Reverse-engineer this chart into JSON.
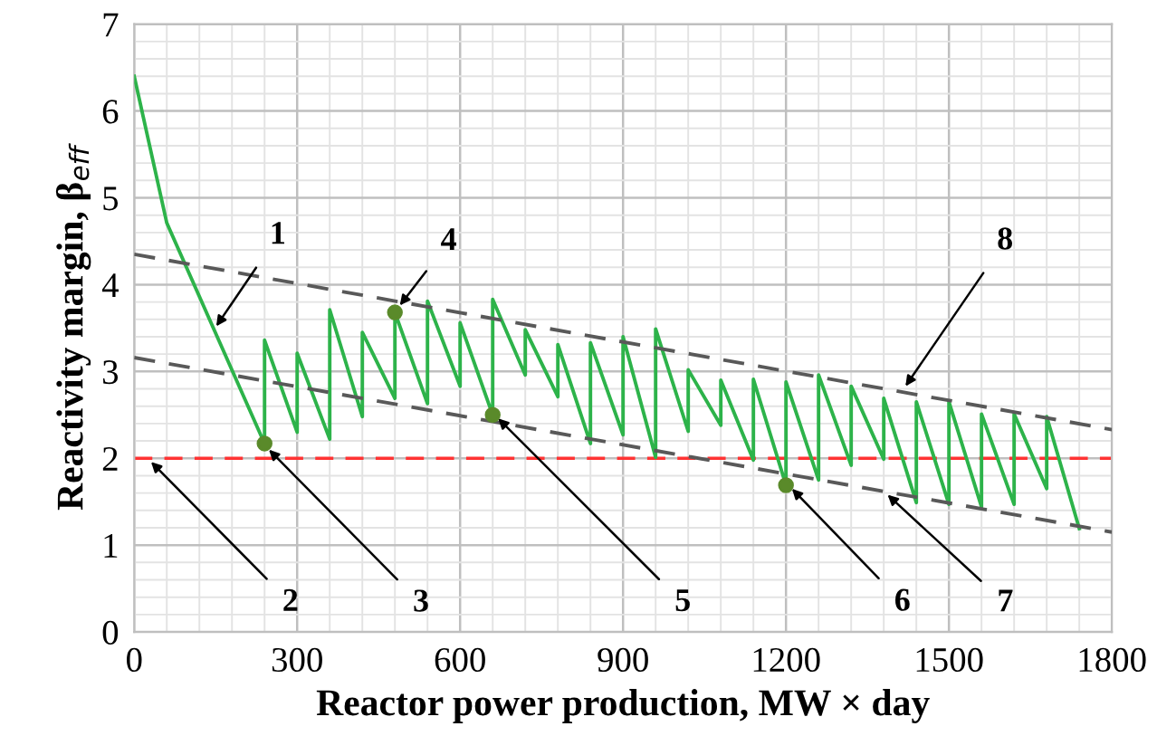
{
  "chart_data": {
    "type": "line",
    "xlabel": "Reactor power production, MW × day",
    "ylabel": "Reactivity margin, β$_{eff}$",
    "xlim": [
      0,
      1800
    ],
    "xticks": [
      0,
      300,
      600,
      900,
      1200,
      1500,
      1800
    ],
    "ylim": [
      0,
      7
    ],
    "yticks": [
      0,
      1,
      2,
      3,
      4,
      5,
      6,
      7
    ],
    "grid": true,
    "legend": false,
    "series": [
      {
        "type": "line",
        "color": "#2db34a",
        "line_style": "solid",
        "marker": "none",
        "x": [
          0,
          60,
          240,
          240,
          300,
          300,
          360,
          360,
          420,
          420,
          480,
          480,
          540,
          540,
          600,
          600,
          660,
          660,
          720,
          720,
          780,
          780,
          840,
          840,
          900,
          900,
          960,
          960,
          1020,
          1020,
          1080,
          1080,
          1140,
          1140,
          1200,
          1200,
          1260,
          1260,
          1320,
          1320,
          1380,
          1380,
          1440,
          1440,
          1500,
          1500,
          1560,
          1560,
          1620,
          1620,
          1680,
          1680,
          1740
        ],
        "values": [
          6.4,
          4.71,
          2.17,
          3.36,
          2.3,
          3.21,
          2.22,
          3.71,
          2.48,
          3.45,
          2.69,
          3.68,
          2.63,
          3.81,
          2.83,
          3.56,
          2.5,
          3.83,
          2.96,
          3.48,
          2.71,
          3.31,
          2.17,
          3.33,
          2.27,
          3.4,
          2.01,
          3.49,
          2.31,
          3.02,
          2.38,
          2.9,
          1.98,
          2.91,
          1.69,
          2.88,
          1.75,
          2.96,
          1.92,
          2.83,
          1.99,
          2.69,
          1.49,
          2.65,
          1.47,
          2.65,
          1.44,
          2.51,
          1.47,
          2.51,
          1.65,
          2.48,
          1.19
        ]
      },
      {
        "type": "line",
        "color": "#595959",
        "line_style": "dashed",
        "marker": "none",
        "x": [
          0,
          1800
        ],
        "values": [
          4.35,
          2.33
        ]
      },
      {
        "type": "line",
        "color": "#595959",
        "line_style": "dashed",
        "marker": "none",
        "x": [
          0,
          1800
        ],
        "values": [
          3.16,
          1.15
        ]
      },
      {
        "type": "scatter",
        "color": "#5a8a2a",
        "marker": "circle",
        "x": [
          240,
          480,
          660,
          1200
        ],
        "values": [
          2.17,
          3.68,
          2.5,
          1.69
        ]
      }
    ],
    "ref_lines": [
      {
        "axis": "y",
        "value": 2,
        "label": null,
        "color": "#ff3333",
        "line_style": "dashed"
      }
    ],
    "annotations": [
      {
        "text": "1",
        "x": 151,
        "y": 3.52
      },
      {
        "text": "2",
        "x": 31,
        "y": 1.96
      },
      {
        "text": "3",
        "x": 248,
        "y": 2.1
      },
      {
        "text": "4",
        "x": 489,
        "y": 3.76
      },
      {
        "text": "5",
        "x": 670,
        "y": 2.46
      },
      {
        "text": "6",
        "x": 1211,
        "y": 1.65
      },
      {
        "text": "7",
        "x": 1387,
        "y": 1.58
      },
      {
        "text": "8",
        "x": 1420,
        "y": 2.83
      }
    ]
  }
}
